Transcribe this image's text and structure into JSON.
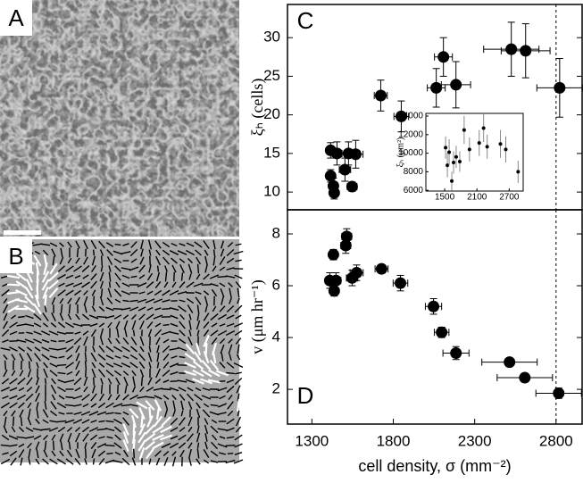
{
  "panels": {
    "a_label": "A",
    "b_label": "B"
  },
  "chart_data": [
    {
      "type": "scatter",
      "panel_label": "C",
      "y_label": "ξₕ (cells)",
      "x": [
        1415,
        1454,
        1525,
        1569,
        1503,
        1415,
        1432,
        1437,
        1547,
        1723,
        1849,
        2064,
        2108,
        2185,
        2525,
        2613,
        2822
      ],
      "values": [
        15.4,
        15.0,
        15.0,
        14.9,
        12.9,
        12.1,
        10.8,
        9.9,
        10.7,
        22.5,
        19.8,
        23.5,
        27.5,
        23.9,
        28.5,
        28.3,
        23.5
      ],
      "xerr": [
        25,
        30,
        40,
        45,
        35,
        20,
        25,
        25,
        30,
        40,
        45,
        55,
        55,
        90,
        170,
        150,
        140
      ],
      "yerr": [
        1.0,
        1.5,
        1.5,
        1.8,
        1.5,
        0.8,
        1.0,
        0.8,
        0.6,
        2.0,
        2.0,
        2.5,
        2.5,
        3.0,
        3.5,
        3.5,
        3.8
      ],
      "color": "#000000",
      "xlim": [
        1150,
        2960
      ],
      "ylim": [
        7.7,
        34.3
      ],
      "yticks": [
        10,
        15,
        20,
        25,
        30
      ],
      "vline": 2800
    },
    {
      "type": "scatter",
      "panel_label": "D",
      "y_label": "v (μm hr⁻¹)",
      "x_label": "cell density, σ (mm⁻²)",
      "x": [
        1514,
        1508,
        1432,
        1410,
        1448,
        1437,
        1547,
        1575,
        1728,
        1844,
        2047,
        2097,
        2185,
        2514,
        2608,
        2816
      ],
      "values": [
        7.9,
        7.55,
        7.2,
        6.2,
        6.2,
        5.8,
        6.3,
        6.5,
        6.65,
        6.1,
        5.2,
        4.2,
        3.4,
        3.05,
        2.45,
        1.85
      ],
      "xerr": [
        30,
        30,
        25,
        20,
        30,
        25,
        35,
        40,
        40,
        45,
        50,
        45,
        80,
        170,
        170,
        140
      ],
      "yerr": [
        0.3,
        0.3,
        0.2,
        0.3,
        0.3,
        0.2,
        0.3,
        0.3,
        0.15,
        0.3,
        0.3,
        0.2,
        0.25,
        0.1,
        0.15,
        0.2
      ],
      "color": "#000000",
      "xlim": [
        1150,
        2960
      ],
      "ylim": [
        0.66,
        8.93
      ],
      "xticks": [
        1300,
        1800,
        2300,
        2800
      ],
      "yticks": [
        2,
        4,
        6,
        8
      ],
      "vline": 2800
    },
    {
      "type": "scatter",
      "y_label": "ξₕ (μm²)",
      "x": [
        1517,
        1550,
        1583,
        1632,
        1665,
        1714,
        1780,
        1862,
        1961,
        2142,
        2224,
        2290,
        2537,
        2636,
        2866
      ],
      "values": [
        10600,
        8700,
        10100,
        7000,
        9000,
        9600,
        9100,
        12500,
        10400,
        11100,
        12700,
        10700,
        11000,
        10400,
        8000
      ],
      "yerr": [
        1200,
        1300,
        1400,
        1000,
        1200,
        1200,
        1100,
        1500,
        1300,
        1400,
        1500,
        1300,
        1500,
        1400,
        1200
      ],
      "color": "#000000",
      "xlim": [
        1150,
        2960
      ],
      "ylim": [
        5920,
        14290
      ],
      "xticks": [
        1500,
        2100,
        2700
      ],
      "yticks": [
        6000,
        8000,
        10000,
        12000,
        14000
      ]
    }
  ]
}
